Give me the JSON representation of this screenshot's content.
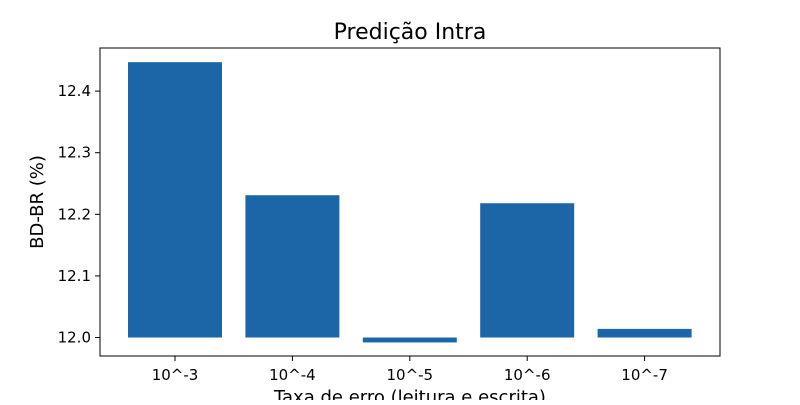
{
  "chart_data": {
    "type": "bar",
    "title": "Predição Intra",
    "xlabel": "Taxa de erro (leitura e escrita)",
    "ylabel": "BD-BR (%)",
    "categories": [
      "10^-3",
      "10^-4",
      "10^-5",
      "10^-6",
      "10^-7"
    ],
    "values": [
      12.447,
      12.231,
      11.992,
      12.218,
      12.014
    ],
    "baseline": 12.0,
    "ylim": [
      11.97,
      12.47
    ],
    "yticks": [
      "12.0",
      "12.1",
      "12.2",
      "12.3",
      "12.4"
    ],
    "bar_color": "#1c66a8",
    "grid": false,
    "legend": "none"
  }
}
